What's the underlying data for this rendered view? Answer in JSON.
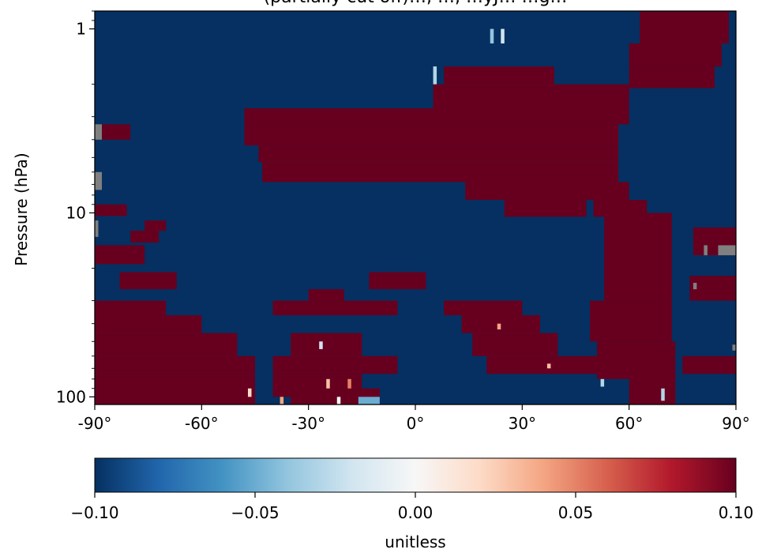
{
  "chart_data": {
    "type": "heatmap",
    "title": "(partially cut off)…, …, …yJ… …g…",
    "xlabel": "",
    "ylabel": "Pressure (hPa)",
    "x_ticks": [
      {
        "value": -90,
        "label": "-90°"
      },
      {
        "value": -60,
        "label": "-60°"
      },
      {
        "value": -30,
        "label": "-30°"
      },
      {
        "value": 0,
        "label": "0°"
      },
      {
        "value": 30,
        "label": "30°"
      },
      {
        "value": 60,
        "label": "60°"
      },
      {
        "value": 90,
        "label": "90°"
      }
    ],
    "y_ticks": [
      {
        "value": 1,
        "label": "1"
      },
      {
        "value": 10,
        "label": "10"
      },
      {
        "value": 100,
        "label": "100"
      }
    ],
    "xlim": [
      -90,
      90
    ],
    "ylim": [
      110,
      0.8
    ],
    "y_scale": "log",
    "y_inverted": true,
    "colorbar": {
      "label": "unitless",
      "range": [
        -0.1,
        0.1
      ],
      "ticks": [
        "−0.10",
        "−0.05",
        "0.00",
        "0.05",
        "0.10"
      ],
      "colormap": [
        "#053061",
        "#2166ac",
        "#4393c3",
        "#92c5de",
        "#d1e5f0",
        "#f7f7f7",
        "#fddbc7",
        "#f4a582",
        "#d6604d",
        "#b2182b",
        "#67001f"
      ],
      "position": "bottom"
    },
    "colors": {
      "negative": "#053061",
      "positive": "#67001f",
      "missing": "#808080"
    },
    "background_value": -0.1,
    "regions": [
      {
        "value": 0.1,
        "lon": [
          63,
          88
        ],
        "p": [
          0.8,
          1.2
        ]
      },
      {
        "value": 0.1,
        "lon": [
          60,
          86
        ],
        "p": [
          1.2,
          1.6
        ]
      },
      {
        "value": 0.1,
        "lon": [
          60,
          84
        ],
        "p": [
          1.6,
          2.1
        ]
      },
      {
        "value": 0.1,
        "lon": [
          8,
          39
        ],
        "p": [
          1.6,
          2.0
        ]
      },
      {
        "value": 0.1,
        "lon": [
          5,
          60
        ],
        "p": [
          2.0,
          2.7
        ]
      },
      {
        "value": 0.1,
        "lon": [
          -48,
          60
        ],
        "p": [
          2.7,
          3.3
        ]
      },
      {
        "value": 0.1,
        "lon": [
          -48,
          57
        ],
        "p": [
          3.3,
          4.3
        ]
      },
      {
        "value": 0.1,
        "lon": [
          -44,
          57
        ],
        "p": [
          4.3,
          5.3
        ]
      },
      {
        "value": 0.1,
        "lon": [
          -43,
          57
        ],
        "p": [
          5.3,
          6.8
        ]
      },
      {
        "value": 0.1,
        "lon": [
          14,
          60
        ],
        "p": [
          6.8,
          8.5
        ]
      },
      {
        "value": 0.1,
        "lon": [
          25,
          48
        ],
        "p": [
          8.5,
          10.5
        ]
      },
      {
        "value": 0.1,
        "lon": [
          50,
          65
        ],
        "p": [
          8.5,
          10.5
        ]
      },
      {
        "value": 0.1,
        "lon": [
          53,
          72
        ],
        "p": [
          10,
          30
        ]
      },
      {
        "value": 0.1,
        "lon": [
          49,
          72
        ],
        "p": [
          30,
          50
        ]
      },
      {
        "value": 0.1,
        "lon": [
          51,
          73
        ],
        "p": [
          50,
          80
        ]
      },
      {
        "value": 0.1,
        "lon": [
          -88,
          -80
        ],
        "p": [
          3.3,
          4.0
        ]
      },
      {
        "value": 0.1,
        "lon": [
          -90,
          -81
        ],
        "p": [
          9.0,
          10.4
        ]
      },
      {
        "value": 0.1,
        "lon": [
          -76,
          -70
        ],
        "p": [
          11.0,
          12.5
        ]
      },
      {
        "value": 0.1,
        "lon": [
          -80,
          -72
        ],
        "p": [
          12.5,
          14.5
        ]
      },
      {
        "value": 0.1,
        "lon": [
          -90,
          -76
        ],
        "p": [
          15,
          19
        ]
      },
      {
        "value": 0.1,
        "lon": [
          -83,
          -67
        ],
        "p": [
          21,
          26
        ]
      },
      {
        "value": 0.1,
        "lon": [
          -13,
          3
        ],
        "p": [
          21,
          26
        ]
      },
      {
        "value": 0.1,
        "lon": [
          -30,
          -20
        ],
        "p": [
          26,
          30
        ]
      },
      {
        "value": 0.1,
        "lon": [
          -90,
          -70
        ],
        "p": [
          30,
          36
        ]
      },
      {
        "value": 0.1,
        "lon": [
          -40,
          -5
        ],
        "p": [
          30,
          36
        ]
      },
      {
        "value": 0.1,
        "lon": [
          8,
          30
        ],
        "p": [
          30,
          36
        ]
      },
      {
        "value": 0.1,
        "lon": [
          -90,
          -60
        ],
        "p": [
          36,
          45
        ]
      },
      {
        "value": 0.1,
        "lon": [
          13,
          35
        ],
        "p": [
          36,
          45
        ]
      },
      {
        "value": 0.1,
        "lon": [
          -90,
          -50
        ],
        "p": [
          45,
          60
        ]
      },
      {
        "value": 0.1,
        "lon": [
          -35,
          -15
        ],
        "p": [
          45,
          60
        ]
      },
      {
        "value": 0.1,
        "lon": [
          16,
          40
        ],
        "p": [
          45,
          60
        ]
      },
      {
        "value": 0.1,
        "lon": [
          -90,
          -45
        ],
        "p": [
          60,
          75
        ]
      },
      {
        "value": 0.1,
        "lon": [
          -40,
          -5
        ],
        "p": [
          60,
          75
        ]
      },
      {
        "value": 0.1,
        "lon": [
          20,
          60
        ],
        "p": [
          60,
          75
        ]
      },
      {
        "value": 0.1,
        "lon": [
          75,
          90
        ],
        "p": [
          60,
          75
        ]
      },
      {
        "value": 0.1,
        "lon": [
          -90,
          -45
        ],
        "p": [
          75,
          110
        ]
      },
      {
        "value": 0.1,
        "lon": [
          -40,
          -15
        ],
        "p": [
          75,
          100
        ]
      },
      {
        "value": 0.1,
        "lon": [
          -35,
          -10
        ],
        "p": [
          90,
          110
        ]
      },
      {
        "value": 0.1,
        "lon": [
          60,
          73
        ],
        "p": [
          75,
          110
        ]
      },
      {
        "value": 0.1,
        "lon": [
          77,
          90
        ],
        "p": [
          22,
          30
        ]
      },
      {
        "value": 0.1,
        "lon": [
          78,
          90
        ],
        "p": [
          12,
          17
        ]
      }
    ],
    "highlights": [
      {
        "value": 0.03,
        "lon": [
          -25,
          -24
        ],
        "p": [
          80,
          90
        ]
      },
      {
        "value": 0.05,
        "lon": [
          -19,
          -18
        ],
        "p": [
          80,
          90
        ]
      },
      {
        "value": 0.02,
        "lon": [
          -47,
          -46
        ],
        "p": [
          90,
          100
        ]
      },
      {
        "value": -0.02,
        "lon": [
          -27,
          -26
        ],
        "p": [
          50,
          55
        ]
      },
      {
        "value": 0.04,
        "lon": [
          23,
          24
        ],
        "p": [
          40,
          43
        ]
      },
      {
        "value": 0.03,
        "lon": [
          37,
          38
        ],
        "p": [
          66,
          70
        ]
      },
      {
        "value": -0.03,
        "lon": [
          5,
          6
        ],
        "p": [
          1.6,
          2.0
        ]
      },
      {
        "value": -0.04,
        "lon": [
          21,
          22
        ],
        "p": [
          1.0,
          1.2
        ]
      },
      {
        "value": -0.02,
        "lon": [
          24,
          25
        ],
        "p": [
          1.0,
          1.2
        ]
      },
      {
        "value": -0.03,
        "lon": [
          69,
          70
        ],
        "p": [
          90,
          105
        ]
      },
      {
        "value": -0.05,
        "lon": [
          -16,
          -10
        ],
        "p": [
          100,
          110
        ]
      },
      {
        "value": 0.0,
        "lon": [
          -22,
          -21
        ],
        "p": [
          100,
          110
        ]
      },
      {
        "value": 0.04,
        "lon": [
          -38,
          -37
        ],
        "p": [
          100,
          110
        ]
      },
      {
        "value": -0.03,
        "lon": [
          52,
          53
        ],
        "p": [
          80,
          88
        ]
      }
    ],
    "missing_cells": [
      {
        "lon": [
          -90,
          -88
        ],
        "p": [
          3.3,
          4.0
        ]
      },
      {
        "lon": [
          -90,
          -88
        ],
        "p": [
          6.0,
          7.5
        ]
      },
      {
        "lon": [
          -90,
          -89
        ],
        "p": [
          11.0,
          13.5
        ]
      },
      {
        "lon": [
          85,
          90
        ],
        "p": [
          15,
          17
        ]
      },
      {
        "lon": [
          81,
          82
        ],
        "p": [
          15,
          17
        ]
      },
      {
        "lon": [
          78,
          79
        ],
        "p": [
          24,
          26
        ]
      },
      {
        "lon": [
          89,
          90
        ],
        "p": [
          52,
          56
        ]
      }
    ]
  }
}
